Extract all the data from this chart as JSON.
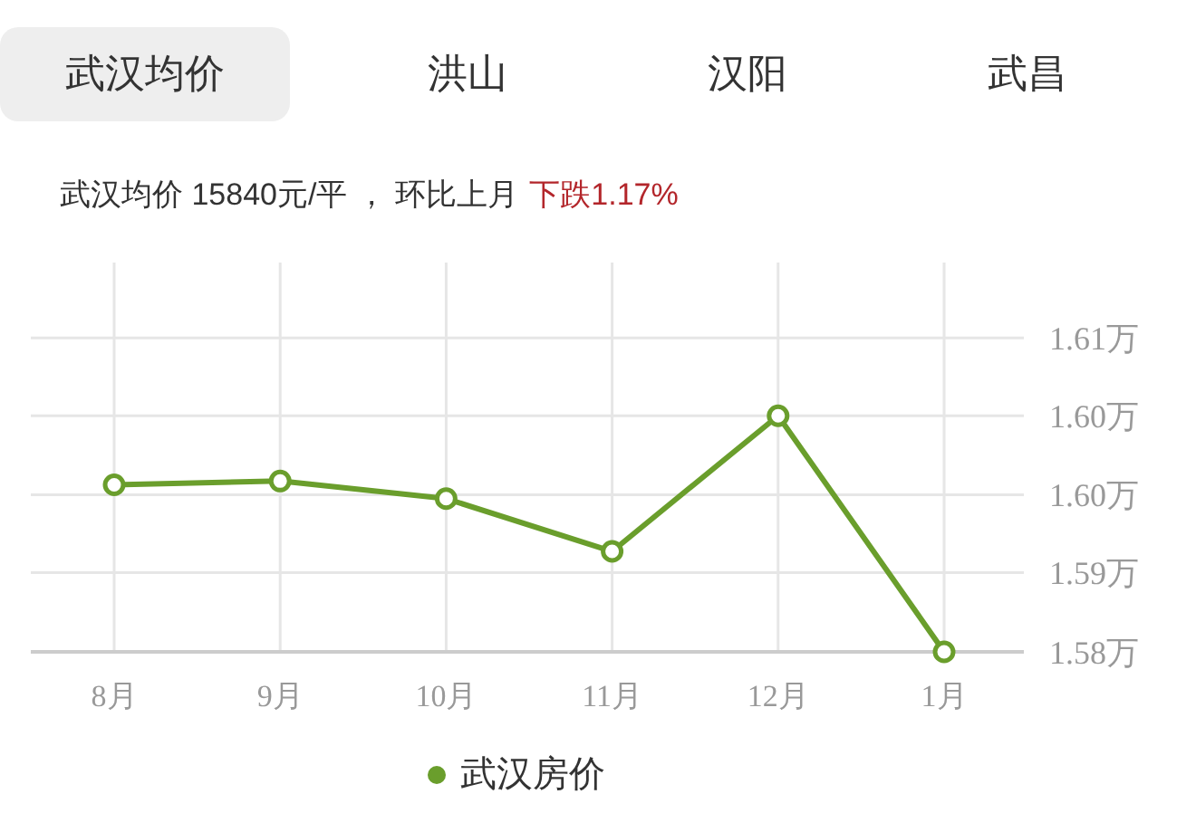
{
  "chart_data": {
    "type": "line",
    "title": "武汉均价 15840元/平 ， 环比上月",
    "subtitle": "下跌1.17%",
    "annotations": [
      "武汉均价",
      "洪山",
      "汉阳",
      "武昌"
    ],
    "categories": [
      "8月",
      "9月",
      "10月",
      "11月",
      "12月",
      "1月"
    ],
    "series": [
      {
        "name": "武汉房价",
        "color": "#6a9e2c",
        "values": [
          1.5973,
          1.5976,
          1.5962,
          1.592,
          1.6028,
          1.584
        ]
      }
    ],
    "ylim": [
      1.584,
      1.615
    ],
    "yticks": [
      {
        "value": 1.584,
        "label": "1.58万"
      },
      {
        "value": 1.5903,
        "label": "1.59万"
      },
      {
        "value": 1.5965,
        "label": "1.60万"
      },
      {
        "value": 1.6028,
        "label": "1.60万"
      },
      {
        "value": 1.609,
        "label": "1.61万"
      }
    ],
    "grid": true,
    "legend": "bottom",
    "marker": "circle",
    "line_style": "solid"
  }
}
